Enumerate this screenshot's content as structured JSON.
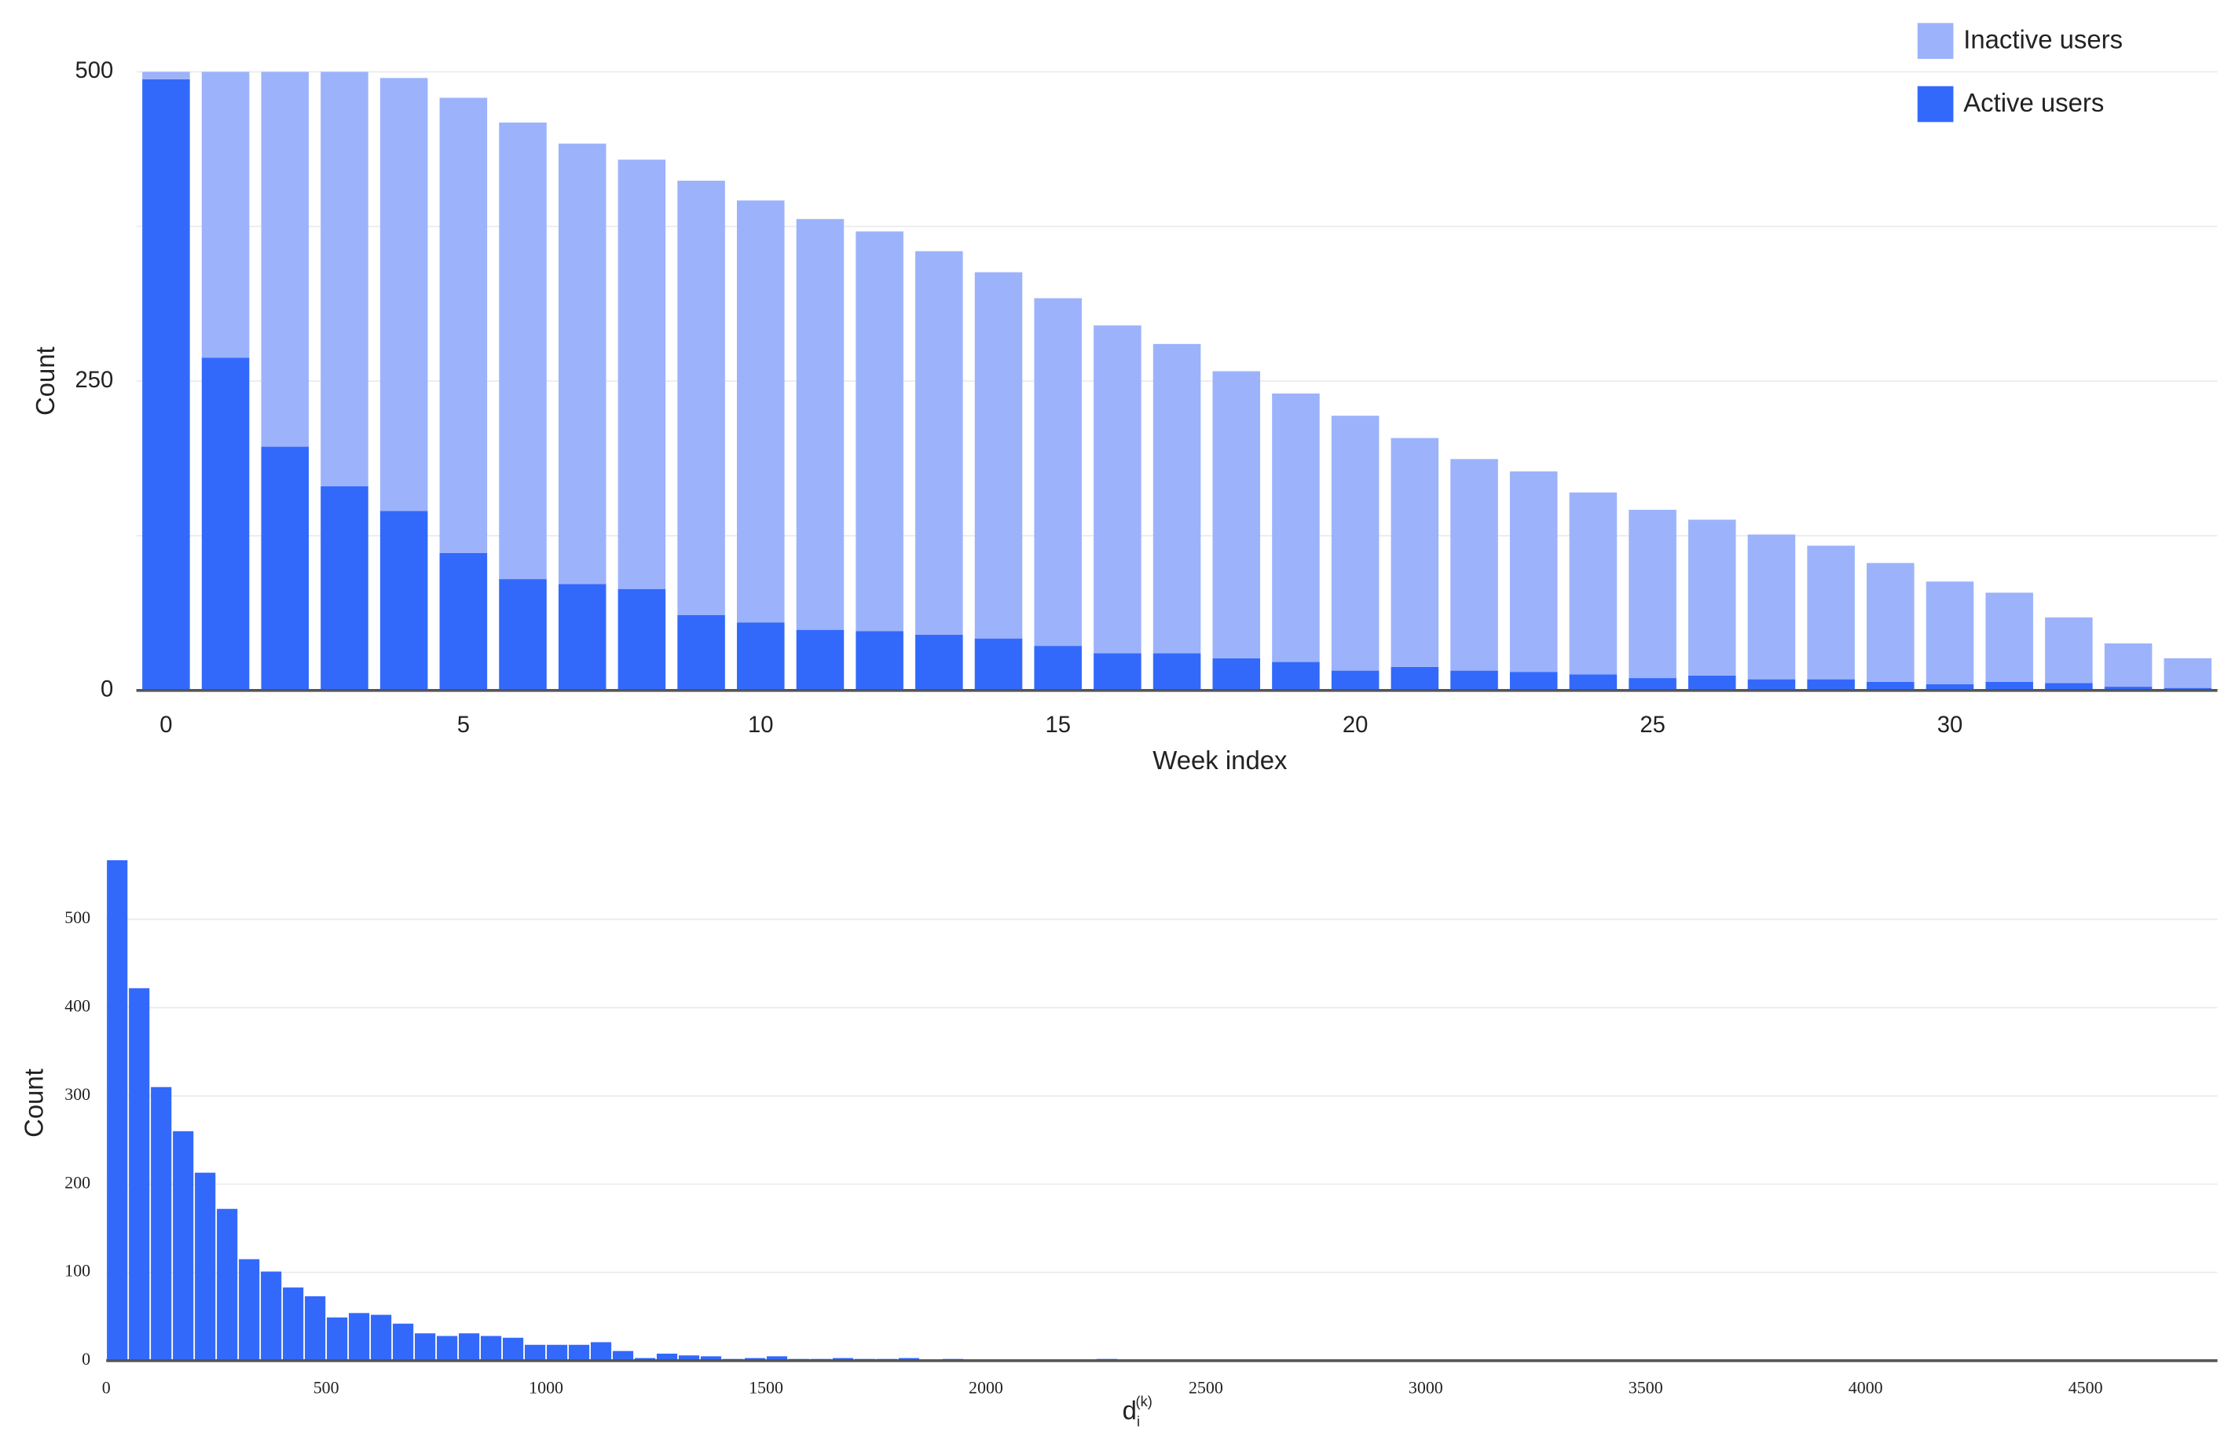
{
  "chart_data": [
    {
      "type": "stacked_bar",
      "xlabel": "Week index",
      "ylabel": "Count",
      "x": [
        0,
        1,
        2,
        3,
        4,
        5,
        6,
        7,
        8,
        9,
        10,
        11,
        12,
        13,
        14,
        15,
        16,
        17,
        18,
        19,
        20,
        21,
        22,
        23,
        24,
        25,
        26,
        27,
        28,
        29,
        30,
        31,
        32,
        33,
        34
      ],
      "series": [
        {
          "name": "Active users",
          "color": "#3369fb",
          "values": [
            494,
            269,
            197,
            165,
            145,
            111,
            90,
            86,
            82,
            61,
            55,
            49,
            48,
            45,
            42,
            36,
            30,
            30,
            26,
            23,
            16,
            19,
            16,
            15,
            13,
            10,
            12,
            9,
            9,
            7,
            5,
            7,
            6,
            3,
            2
          ]
        },
        {
          "name": "Inactive users",
          "color": "#9cb3fb",
          "values": [
            6,
            231,
            303,
            335,
            350,
            368,
            369,
            356,
            347,
            351,
            341,
            332,
            323,
            310,
            296,
            281,
            265,
            250,
            232,
            217,
            206,
            185,
            171,
            162,
            147,
            136,
            126,
            117,
            108,
            96,
            83,
            72,
            53,
            35,
            24
          ]
        }
      ],
      "xlim": [
        -0.5,
        34.5
      ],
      "xticks": [
        0,
        5,
        10,
        15,
        20,
        25,
        30
      ],
      "ylim": [
        0,
        500
      ],
      "yticks": [
        0,
        250,
        500
      ],
      "minor_yticks": [
        125,
        375
      ],
      "grid": true,
      "legend": "top-right"
    },
    {
      "type": "histogram",
      "xlabel": {
        "base": "d",
        "sub": "i",
        "sup": "(k)"
      },
      "ylabel": "Count",
      "color": "#3369fb",
      "bins": [
        0,
        50,
        100,
        150,
        200,
        250,
        300,
        350,
        400,
        450,
        500,
        550,
        600,
        650,
        700,
        750,
        800,
        850,
        900,
        950,
        1000,
        1050,
        1100,
        1150,
        1200,
        1250,
        1300,
        1350,
        1400,
        1450,
        1500,
        1550,
        1600,
        1650,
        1700,
        1750,
        1800,
        1850,
        1900,
        1950,
        2000,
        2050,
        2100,
        2150,
        2200,
        2250,
        2300,
        2350,
        2400,
        2450,
        2500,
        2550,
        2600,
        2650,
        2700,
        2750,
        2800,
        2850,
        2900,
        2950,
        3000,
        3050,
        3100,
        3150,
        3200,
        3250,
        3300,
        3350,
        3400,
        3450,
        3500,
        3550,
        3600,
        3650,
        3700,
        3750,
        3800,
        3850,
        3900,
        3950,
        4000,
        4050,
        4100,
        4150,
        4200,
        4250,
        4300,
        4350,
        4400,
        4450,
        4500,
        4550,
        4600,
        4650,
        4700,
        4750,
        4800
      ],
      "values": [
        567,
        422,
        310,
        260,
        213,
        172,
        115,
        101,
        83,
        73,
        49,
        54,
        52,
        42,
        31,
        28,
        31,
        28,
        26,
        18,
        18,
        18,
        21,
        11,
        3,
        8,
        6,
        5,
        2,
        3,
        5,
        2,
        2,
        3,
        2,
        2,
        3,
        1,
        2,
        1,
        0,
        0,
        1,
        1,
        1,
        2,
        1,
        0,
        1,
        1,
        0,
        0,
        1,
        0,
        1,
        0,
        0,
        0,
        1,
        1,
        1,
        1,
        1,
        0,
        1,
        1,
        0,
        1,
        1,
        1,
        1,
        1,
        0,
        1,
        1,
        1,
        0,
        1,
        1,
        1,
        1,
        1,
        1,
        1,
        1,
        1,
        1,
        1,
        1,
        1,
        0,
        0,
        1,
        1,
        1,
        1
      ],
      "xlim": [
        0,
        4800
      ],
      "xticks": [
        0,
        500,
        1000,
        1500,
        2000,
        2500,
        3000,
        3500,
        4000,
        4500
      ],
      "ylim": [
        0,
        600
      ],
      "yticks": [
        0,
        100,
        200,
        300,
        400,
        500
      ],
      "grid": true
    }
  ]
}
